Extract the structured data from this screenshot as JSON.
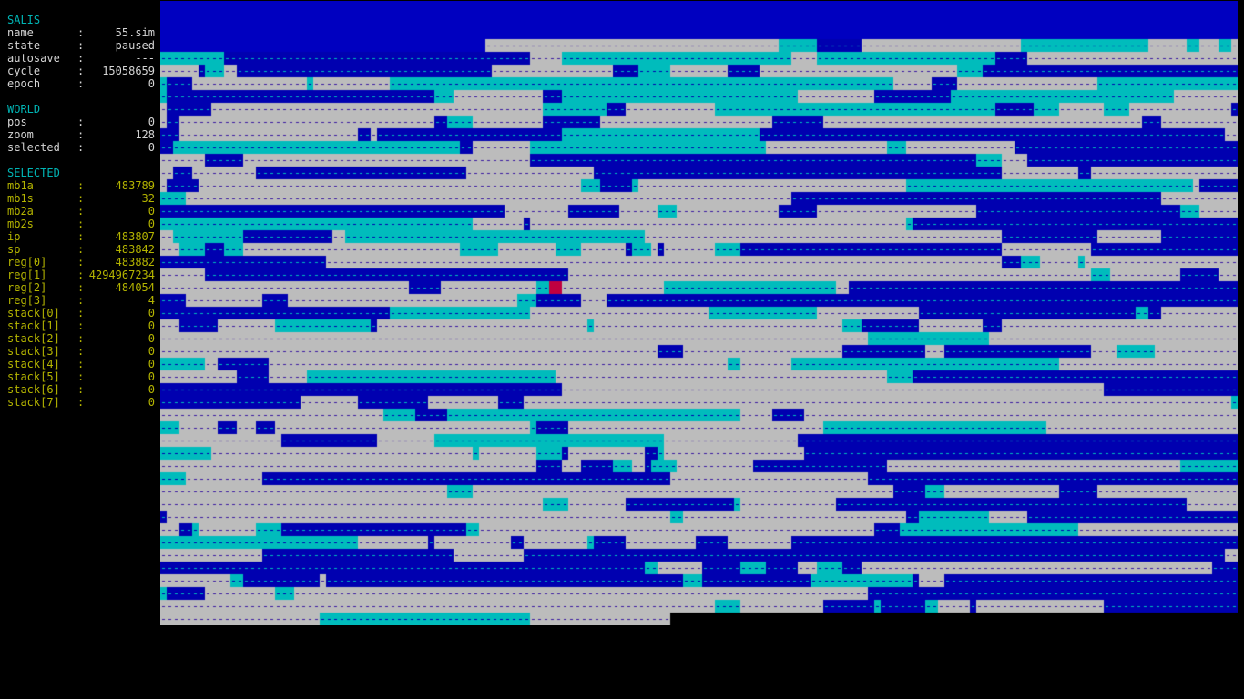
{
  "salis": {
    "header": "SALIS",
    "rows": [
      {
        "label": "name",
        "value": "55.sim"
      },
      {
        "label": "state",
        "value": "paused"
      },
      {
        "label": "autosave",
        "value": "---"
      },
      {
        "label": "cycle",
        "value": "15058659"
      },
      {
        "label": "epoch",
        "value": "0"
      }
    ]
  },
  "world": {
    "header": "WORLD",
    "rows": [
      {
        "label": "pos",
        "value": "0"
      },
      {
        "label": "zoom",
        "value": "128"
      },
      {
        "label": "selected",
        "value": "0"
      }
    ]
  },
  "selected": {
    "header": "SELECTED",
    "rows": [
      {
        "label": "mb1a",
        "value": "483789"
      },
      {
        "label": "mb1s",
        "value": "32"
      },
      {
        "label": "mb2a",
        "value": "0"
      },
      {
        "label": "mb2s",
        "value": "0"
      },
      {
        "label": "ip",
        "value": "483807"
      },
      {
        "label": "sp",
        "value": "483842"
      },
      {
        "label": "reg[0]",
        "value": "483882"
      },
      {
        "label": "reg[1]",
        "value": "4294967234"
      },
      {
        "label": "reg[2]",
        "value": "484054"
      },
      {
        "label": "reg[3]",
        "value": "4"
      },
      {
        "label": "stack[0]",
        "value": "0"
      },
      {
        "label": "stack[1]",
        "value": "0"
      },
      {
        "label": "stack[2]",
        "value": "0"
      },
      {
        "label": "stack[3]",
        "value": "0"
      },
      {
        "label": "stack[4]",
        "value": "0"
      },
      {
        "label": "stack[5]",
        "value": "0"
      },
      {
        "label": "stack[6]",
        "value": "0"
      },
      {
        "label": "stack[7]",
        "value": "0"
      }
    ]
  },
  "separator": ":",
  "colors": {
    "background": "#000000",
    "header": "#00b4b4",
    "label": "#d4d4d4",
    "selected_value": "#b4b400",
    "free_memory": "#bcbcbc",
    "allocated_block": "#0000b0",
    "allocated_block_top": "#0000c0",
    "cyan_block": "#00bcbc",
    "selected_ip": "#c00040"
  }
}
